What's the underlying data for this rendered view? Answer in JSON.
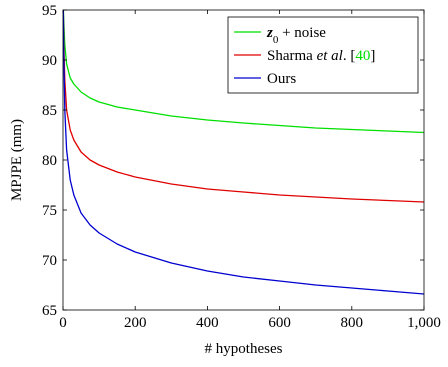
{
  "chart_data": {
    "type": "line",
    "xlabel": "# hypotheses",
    "ylabel": "MPJPE (mm)",
    "xlim": [
      0,
      1000
    ],
    "ylim": [
      65,
      95
    ],
    "x_ticks": [
      0,
      200,
      400,
      600,
      800,
      1000
    ],
    "x_tick_labels": [
      "0",
      "200",
      "400",
      "600",
      "800",
      "1,000"
    ],
    "y_ticks": [
      65,
      70,
      75,
      80,
      85,
      90,
      95
    ],
    "y_tick_labels": [
      "65",
      "70",
      "75",
      "80",
      "85",
      "90",
      "95"
    ],
    "grid": false,
    "legend_position": "top-right",
    "series": [
      {
        "name_parts": [
          {
            "text": "z",
            "style": "italic-bold"
          },
          {
            "text": "0",
            "style": "subscript"
          },
          {
            "text": " + noise",
            "style": "normal"
          }
        ],
        "color": "#00e000",
        "x": [
          1,
          2,
          5,
          10,
          20,
          30,
          50,
          75,
          100,
          150,
          200,
          300,
          400,
          500,
          600,
          700,
          800,
          900,
          1000
        ],
        "y": [
          95.0,
          94.0,
          91.5,
          89.6,
          88.2,
          87.6,
          86.8,
          86.2,
          85.8,
          85.3,
          85.0,
          84.4,
          84.0,
          83.7,
          83.45,
          83.2,
          83.05,
          82.9,
          82.75
        ]
      },
      {
        "name_parts": [
          {
            "text": "Sharma ",
            "style": "normal"
          },
          {
            "text": "et al",
            "style": "italic"
          },
          {
            "text": ". [",
            "style": "normal"
          },
          {
            "text": "40",
            "style": "cite"
          },
          {
            "text": "]",
            "style": "normal"
          }
        ],
        "color": "#e00000",
        "x": [
          1,
          2,
          5,
          10,
          20,
          30,
          50,
          75,
          100,
          150,
          200,
          300,
          400,
          500,
          600,
          700,
          800,
          900,
          1000
        ],
        "y": [
          94.5,
          92.0,
          88.0,
          85.0,
          83.0,
          82.0,
          80.8,
          80.0,
          79.5,
          78.8,
          78.3,
          77.6,
          77.1,
          76.8,
          76.5,
          76.3,
          76.1,
          75.95,
          75.8
        ]
      },
      {
        "name_parts": [
          {
            "text": "Ours",
            "style": "normal"
          }
        ],
        "color": "#0000d0",
        "x": [
          1,
          2,
          5,
          10,
          20,
          30,
          50,
          75,
          100,
          150,
          200,
          300,
          400,
          500,
          600,
          700,
          800,
          900,
          1000
        ],
        "y": [
          95.0,
          91.0,
          85.0,
          81.0,
          78.0,
          76.5,
          74.7,
          73.5,
          72.7,
          71.6,
          70.8,
          69.7,
          68.9,
          68.3,
          67.9,
          67.5,
          67.2,
          66.9,
          66.6
        ]
      }
    ],
    "cite_color": "#00e000"
  }
}
